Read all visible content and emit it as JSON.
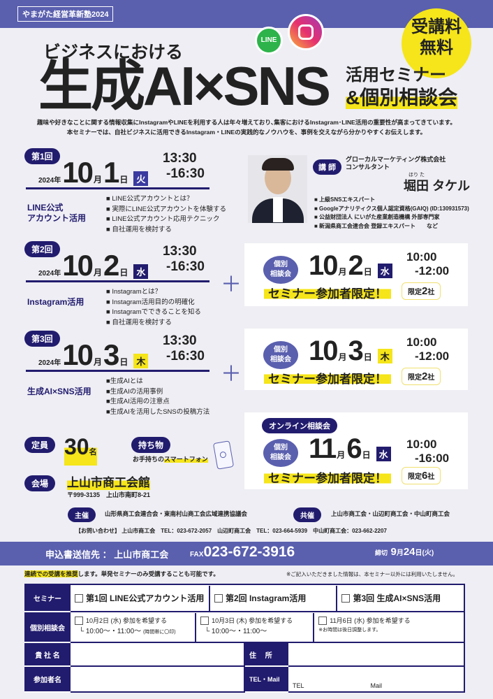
{
  "header": {
    "tag": "やまがた経営革新塾2024",
    "pre_title": "ビジネスにおける",
    "title": "生成AI×SNS",
    "subtitle1": "活用セミナー",
    "subtitle2": "&個別相談会",
    "badge": [
      "受講料",
      "無料"
    ],
    "line_icon_label": "LINE"
  },
  "intro": [
    "趣味や好きなことに関する情報収集にInstagramやLINEを利用する人は年々増えており､集客におけるInstagram･LINE活用の重要性が高まってきています。",
    "本セミナーでは、自社ビジネスに活用できるInstagram・LINEの実践的なノウハウを、事例を交えながら分かりやすくお伝えします。"
  ],
  "sessions": [
    {
      "label": "第1回",
      "year": "2024年",
      "month": "10",
      "month_unit": "月",
      "day": "1",
      "day_unit": "日",
      "dow": "火",
      "time1": "13:30",
      "time2": "-16:30",
      "topic": [
        "LINE公式",
        "アカウント活用"
      ],
      "items": [
        "■ LINE公式アカウントとは？",
        "■ 実際にLINE公式アカウントを体験する",
        "■ LINE公式アカウント応用テクニック",
        "■ 自社運用を検討する"
      ]
    },
    {
      "label": "第2回",
      "year": "2024年",
      "month": "10",
      "month_unit": "月",
      "day": "2",
      "day_unit": "日",
      "dow": "水",
      "time1": "13:30",
      "time2": "-16:30",
      "topic": [
        "Instagram活用"
      ],
      "items": [
        "■ Instagramとは？",
        "■ Instagram活用目的の明確化",
        "■ Instagramでできることを知る",
        "■ 自社運用を検討する"
      ]
    },
    {
      "label": "第3回",
      "year": "2024年",
      "month": "10",
      "month_unit": "月",
      "day": "3",
      "day_unit": "日",
      "dow": "木",
      "time1": "13:30",
      "time2": "-16:30",
      "topic": [
        "生成AI×SNS活用"
      ],
      "items": [
        "■生成AIとは",
        "■生成AIの活用事例",
        "■生成AI活用の注意点",
        "■生成AIを活用したSNSの投稿方法"
      ]
    }
  ],
  "lecturer": {
    "label": "講 師",
    "company": "グローカルマーケティング株式会社",
    "role": "コンサルタント",
    "ruby": "ほり た",
    "name": "堀田 タケル",
    "creds": [
      "■ 上級SNSエキスパート",
      "■ Googleアナリティクス個人認定資格(GAIQ) (ID:130931573)",
      "■ 公益財団法人 にいがた産業創造機構 外部専門家",
      "■ 新潟県商工会連合会 登録エキスパート　　など"
    ]
  },
  "consults": [
    {
      "badge": [
        "個別",
        "相談会"
      ],
      "month": "10",
      "month_unit": "月",
      "day": "2",
      "day_unit": "日",
      "dow": "水",
      "time1": "10:00",
      "time2": "-12:00",
      "limited": "セミナー参加者限定！",
      "cap_pre": "限定",
      "cap_num": "2",
      "cap_unit": "社"
    },
    {
      "badge": [
        "個別",
        "相談会"
      ],
      "month": "10",
      "month_unit": "月",
      "day": "3",
      "day_unit": "日",
      "dow": "木",
      "time1": "10:00",
      "time2": "-12:00",
      "limited": "セミナー参加者限定！",
      "cap_pre": "限定",
      "cap_num": "2",
      "cap_unit": "社"
    },
    {
      "online": "オンライン相談会",
      "badge": [
        "個別",
        "相談会"
      ],
      "month": "11",
      "month_unit": "月",
      "day": "6",
      "day_unit": "日",
      "dow": "水",
      "time1": "10:00",
      "time2": "-16:00",
      "limited": "セミナー参加者限定！",
      "cap_pre": "限定",
      "cap_num": "6",
      "cap_unit": "社"
    }
  ],
  "info": {
    "capacity_label": "定員",
    "capacity": "30",
    "capacity_unit": "名",
    "bring_label": "持ち物",
    "bring_pre": "お手持ちの",
    "bring_item": "スマートフォン",
    "venue_label": "会場",
    "venue": "上山市商工会館",
    "address": "〒999-3135　上山市南町8-21",
    "host_label": "主催",
    "host": "山形県商工会連合会・東南村山商工会広域連携協議会",
    "cohost_label": "共催",
    "cohost": "上山市商工会・山辺町商工会・中山町商工会",
    "contact": "【お問い合わせ】 上山市商工会　TEL：023-672-2057　山辺町商工会　TEL：023-664-5939　中山町商工会：023-662-2207"
  },
  "apply": {
    "dest": "申込書送信先 ： 上山市商工会",
    "fax_label": "FAX",
    "fax": "023-672-3916",
    "deadline_label": "締切",
    "deadline_month": "9",
    "deadline_mu": "月",
    "deadline_day": "24",
    "deadline_rest": "日(火)",
    "note_hl": "連続での受講を推奨",
    "note": "します。単発セミナーのみ受講することも可能です。",
    "privacy": "※ご記入いただきました情報は、本セミナー以外には利用いたしません。"
  },
  "form": {
    "seminar_label": "セミナー",
    "seminars": [
      "第1回 LINE公式アカウント活用",
      "第2回 Instagram活用",
      "第3回 生成AI×SNS活用"
    ],
    "consult_label": "個別相談会",
    "consults": [
      {
        "title": "10月2日 (水) 参加を希望する",
        "sub": "└ 10:00～・11:00～",
        "note": "(時間帯に〇印)"
      },
      {
        "title": "10月3日 (木) 参加を希望する",
        "sub": "└ 10:00～・11:00～",
        "note": ""
      },
      {
        "title": "11月6日 (水) 参加を希望する",
        "sub": "",
        "note": "※お時間は後日調整します。"
      }
    ],
    "company_label": "貴 社 名",
    "address_label": "住　 所",
    "name_label": "参加者名",
    "tel_label": "TEL・Mail",
    "tel": "TEL",
    "mail": "Mail"
  },
  "colors": {
    "band": "#5a5fae",
    "navy": "#221c6e",
    "yellow": "#f5e51a"
  }
}
